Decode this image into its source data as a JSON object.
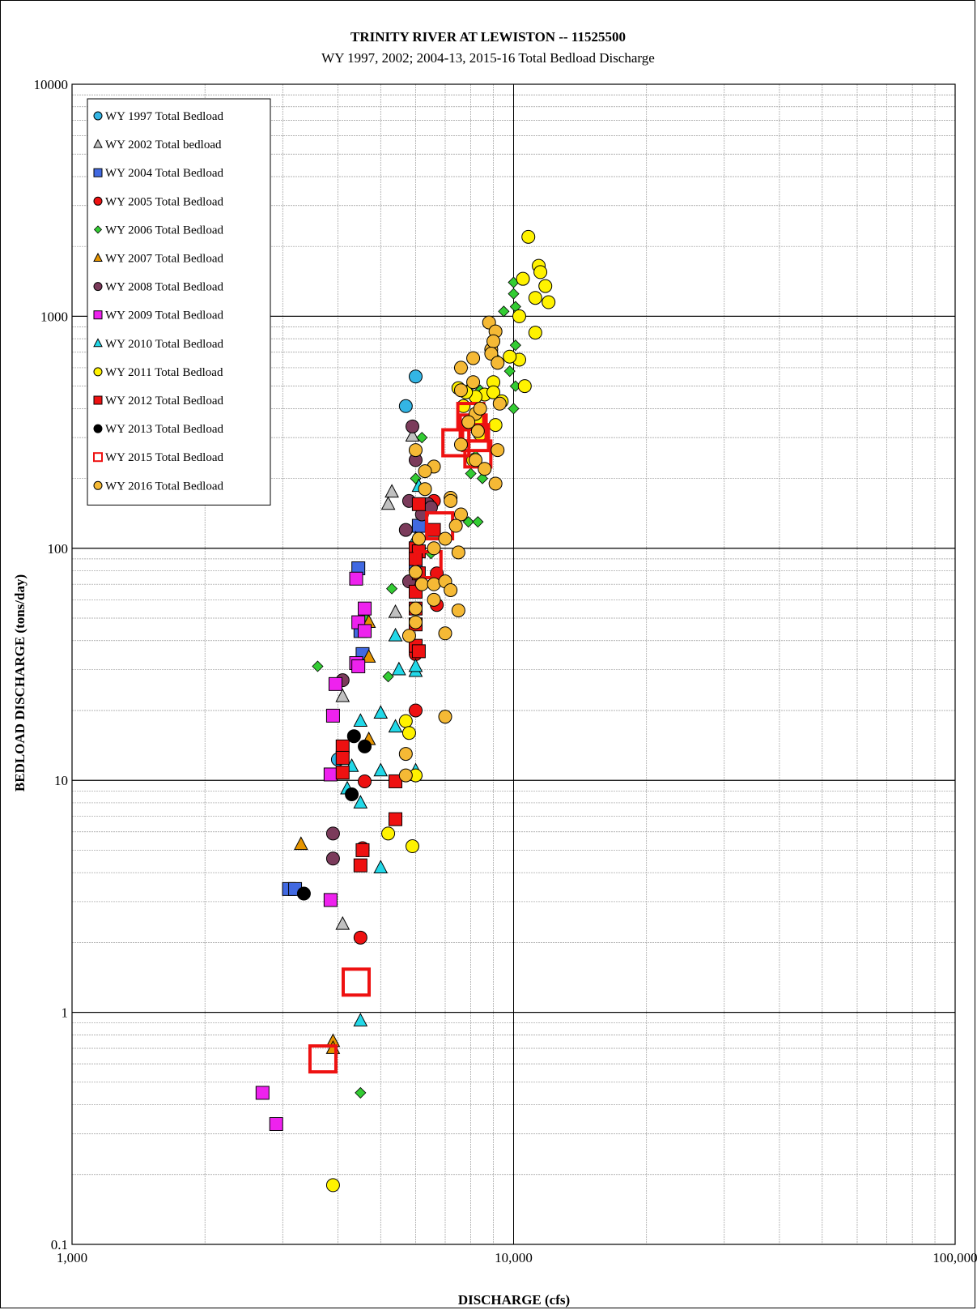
{
  "chart_data": {
    "type": "scatter",
    "title": "TRINITY RIVER AT LEWISTON -- 11525500",
    "subtitle": "WY 1997, 2002; 2004-13, 2015-16 Total Bedload Discharge",
    "xlabel": "DISCHARGE  (cfs)",
    "ylabel": "BEDLOAD DISCHARGE  (tons/day)",
    "x_scale": "log",
    "y_scale": "log",
    "xlim": [
      1000,
      100000
    ],
    "ylim": [
      0.1,
      10000
    ],
    "x_ticks": [
      "1,000",
      "10,000",
      "100,000"
    ],
    "y_ticks": [
      "0.1",
      "1",
      "10",
      "100",
      "1000",
      "10000"
    ],
    "grid": true,
    "legend_position": "top-left",
    "series": [
      {
        "name": "WY 1997 Total Bedload",
        "marker": "circle",
        "color": "#33B5E5",
        "points": [
          [
            6000,
            550
          ],
          [
            5700,
            410
          ],
          [
            4000,
            12.3
          ]
        ]
      },
      {
        "name": "WY 2002 Total bedload",
        "marker": "triangle",
        "color": "#C0C0C0",
        "points": [
          [
            5300,
            175
          ],
          [
            5200,
            155
          ],
          [
            5900,
            305
          ],
          [
            4100,
            23
          ],
          [
            5400,
            53
          ],
          [
            4100,
            2.4
          ]
        ]
      },
      {
        "name": "WY 2004 Total Bedload",
        "marker": "square",
        "color": "#4169E1",
        "points": [
          [
            4450,
            82
          ],
          [
            4550,
            35
          ],
          [
            4500,
            44
          ],
          [
            3100,
            3.4
          ],
          [
            3200,
            3.4
          ],
          [
            6100,
            125
          ],
          [
            6000,
            85
          ]
        ]
      },
      {
        "name": "WY 2005 Total Bedload",
        "marker": "circle",
        "color": "#EE1111",
        "points": [
          [
            6000,
            20
          ],
          [
            6700,
            57
          ],
          [
            6700,
            78
          ],
          [
            6600,
            160
          ],
          [
            4600,
            9.9
          ],
          [
            4550,
            5.1
          ],
          [
            4500,
            2.1
          ],
          [
            6000,
            35
          ]
        ]
      },
      {
        "name": "WY 2006 Total Bedload",
        "marker": "diamond",
        "color": "#33CC33",
        "points": [
          [
            3600,
            31
          ],
          [
            4600,
            50
          ],
          [
            5300,
            67
          ],
          [
            5200,
            28
          ],
          [
            6000,
            200
          ],
          [
            6200,
            300
          ],
          [
            8000,
            210
          ],
          [
            8200,
            250
          ],
          [
            8400,
            480
          ],
          [
            8500,
            200
          ],
          [
            7900,
            130
          ],
          [
            8300,
            130
          ],
          [
            9200,
            650
          ],
          [
            9500,
            1050
          ],
          [
            9800,
            580
          ],
          [
            10000,
            400
          ],
          [
            10100,
            1100
          ],
          [
            10000,
            1400
          ],
          [
            10000,
            1250
          ],
          [
            10100,
            750
          ],
          [
            10100,
            500
          ],
          [
            4500,
            0.45
          ],
          [
            8000,
            500
          ],
          [
            6500,
            95
          ]
        ]
      },
      {
        "name": "WY 2007 Total Bedload",
        "marker": "triangle",
        "color": "#E69500",
        "points": [
          [
            3300,
            5.3
          ],
          [
            3900,
            0.75
          ],
          [
            3900,
            0.7
          ],
          [
            4700,
            48
          ],
          [
            4700,
            34
          ],
          [
            4700,
            15
          ]
        ]
      },
      {
        "name": "WY 2008 Total Bedload",
        "marker": "circle",
        "color": "#7B3B5B",
        "points": [
          [
            4100,
            27
          ],
          [
            3900,
            5.9
          ],
          [
            3900,
            4.6
          ],
          [
            5900,
            335
          ],
          [
            6000,
            240
          ],
          [
            5800,
            160
          ],
          [
            5700,
            120
          ],
          [
            5800,
            72
          ],
          [
            6200,
            140
          ],
          [
            6400,
            155
          ],
          [
            6500,
            150
          ]
        ]
      },
      {
        "name": "WY 2009 Total Bedload",
        "marker": "square",
        "color": "#EE22EE",
        "points": [
          [
            4400,
            74
          ],
          [
            4600,
            55
          ],
          [
            4450,
            48
          ],
          [
            4600,
            44
          ],
          [
            4400,
            32
          ],
          [
            4450,
            31
          ],
          [
            3950,
            26
          ],
          [
            3900,
            19
          ],
          [
            3850,
            10.6
          ],
          [
            3850,
            3.05
          ],
          [
            2700,
            0.45
          ],
          [
            2900,
            0.33
          ]
        ]
      },
      {
        "name": "WY 2010 Total Bedload",
        "marker": "triangle",
        "color": "#22D8E8",
        "points": [
          [
            4300,
            11.5
          ],
          [
            4200,
            9.2
          ],
          [
            4500,
            8
          ],
          [
            4500,
            18
          ],
          [
            5000,
            19.5
          ],
          [
            5500,
            30
          ],
          [
            5400,
            17
          ],
          [
            6000,
            29.5
          ],
          [
            6000,
            31
          ],
          [
            5400,
            42
          ],
          [
            6000,
            11
          ],
          [
            5000,
            4.2
          ],
          [
            4500,
            0.92
          ],
          [
            5000,
            11
          ],
          [
            6100,
            185
          ],
          [
            6000,
            110
          ]
        ]
      },
      {
        "name": "WY 2011 Total Bedload",
        "marker": "circle",
        "color": "#FFF200",
        "points": [
          [
            10800,
            2200
          ],
          [
            11400,
            1650
          ],
          [
            11500,
            1550
          ],
          [
            11800,
            1350
          ],
          [
            10500,
            1450
          ],
          [
            12000,
            1150
          ],
          [
            11200,
            1200
          ],
          [
            10300,
            1000
          ],
          [
            11200,
            850
          ],
          [
            10300,
            650
          ],
          [
            9800,
            670
          ],
          [
            10600,
            500
          ],
          [
            9000,
            520
          ],
          [
            8600,
            460
          ],
          [
            8200,
            450
          ],
          [
            7800,
            470
          ],
          [
            7500,
            490
          ],
          [
            7700,
            410
          ],
          [
            8300,
            360
          ],
          [
            9000,
            470
          ],
          [
            9400,
            430
          ],
          [
            9100,
            340
          ],
          [
            8400,
            310
          ],
          [
            8100,
            240
          ],
          [
            5700,
            18
          ],
          [
            5800,
            16
          ],
          [
            5200,
            5.9
          ],
          [
            3900,
            0.18
          ],
          [
            5900,
            5.2
          ],
          [
            6000,
            10.5
          ]
        ]
      },
      {
        "name": "WY 2012 Total Bedload",
        "marker": "square",
        "color": "#EE1111",
        "points": [
          [
            6100,
            155
          ],
          [
            6000,
            100
          ],
          [
            6100,
            97
          ],
          [
            6000,
            90
          ],
          [
            6100,
            78
          ],
          [
            6000,
            65
          ],
          [
            6000,
            55
          ],
          [
            6000,
            38
          ],
          [
            6100,
            36
          ],
          [
            6000,
            47
          ],
          [
            6600,
            120
          ],
          [
            4100,
            14
          ],
          [
            4100,
            12.5
          ],
          [
            4100,
            10.8
          ],
          [
            5400,
            9.9
          ],
          [
            5400,
            6.8
          ],
          [
            4550,
            5
          ],
          [
            4500,
            4.3
          ]
        ]
      },
      {
        "name": "WY 2013 Total Bedload",
        "marker": "circle",
        "color": "#000000",
        "points": [
          [
            4350,
            15.5
          ],
          [
            4600,
            14
          ],
          [
            4300,
            8.7
          ],
          [
            3350,
            3.25
          ]
        ]
      },
      {
        "name": "WY 2015 Total Bedload",
        "marker": "hollow-square",
        "color": "#EE1111",
        "points": [
          [
            3700,
            0.63
          ],
          [
            4400,
            1.35
          ],
          [
            6800,
            125
          ],
          [
            6400,
            85
          ],
          [
            7400,
            285
          ],
          [
            8000,
            370
          ],
          [
            8200,
            300
          ],
          [
            8300,
            255
          ],
          [
            8100,
            330
          ]
        ]
      },
      {
        "name": "WY 2016 Total Bedload",
        "marker": "circle",
        "color": "#F5B935",
        "points": [
          [
            8800,
            940
          ],
          [
            9100,
            860
          ],
          [
            8100,
            660
          ],
          [
            8900,
            720
          ],
          [
            9000,
            780
          ],
          [
            8900,
            690
          ],
          [
            9200,
            630
          ],
          [
            7600,
            600
          ],
          [
            8200,
            380
          ],
          [
            8400,
            400
          ],
          [
            8100,
            520
          ],
          [
            7600,
            480
          ],
          [
            9300,
            420
          ],
          [
            7900,
            350
          ],
          [
            8300,
            320
          ],
          [
            7600,
            280
          ],
          [
            9200,
            265
          ],
          [
            8200,
            240
          ],
          [
            8600,
            220
          ],
          [
            9100,
            190
          ],
          [
            6000,
            265
          ],
          [
            6600,
            225
          ],
          [
            6300,
            215
          ],
          [
            6300,
            180
          ],
          [
            7200,
            165
          ],
          [
            7200,
            160
          ],
          [
            7600,
            140
          ],
          [
            7400,
            125
          ],
          [
            7000,
            110
          ],
          [
            6600,
            100
          ],
          [
            6100,
            110
          ],
          [
            7500,
            96
          ],
          [
            6000,
            79
          ],
          [
            6200,
            70
          ],
          [
            6600,
            70
          ],
          [
            7000,
            72
          ],
          [
            7200,
            66
          ],
          [
            6600,
            60
          ],
          [
            6000,
            55
          ],
          [
            6000,
            48
          ],
          [
            5800,
            42
          ],
          [
            7000,
            43
          ],
          [
            7500,
            54
          ],
          [
            7000,
            18.8
          ],
          [
            5700,
            13
          ],
          [
            5700,
            10.5
          ]
        ]
      }
    ]
  }
}
